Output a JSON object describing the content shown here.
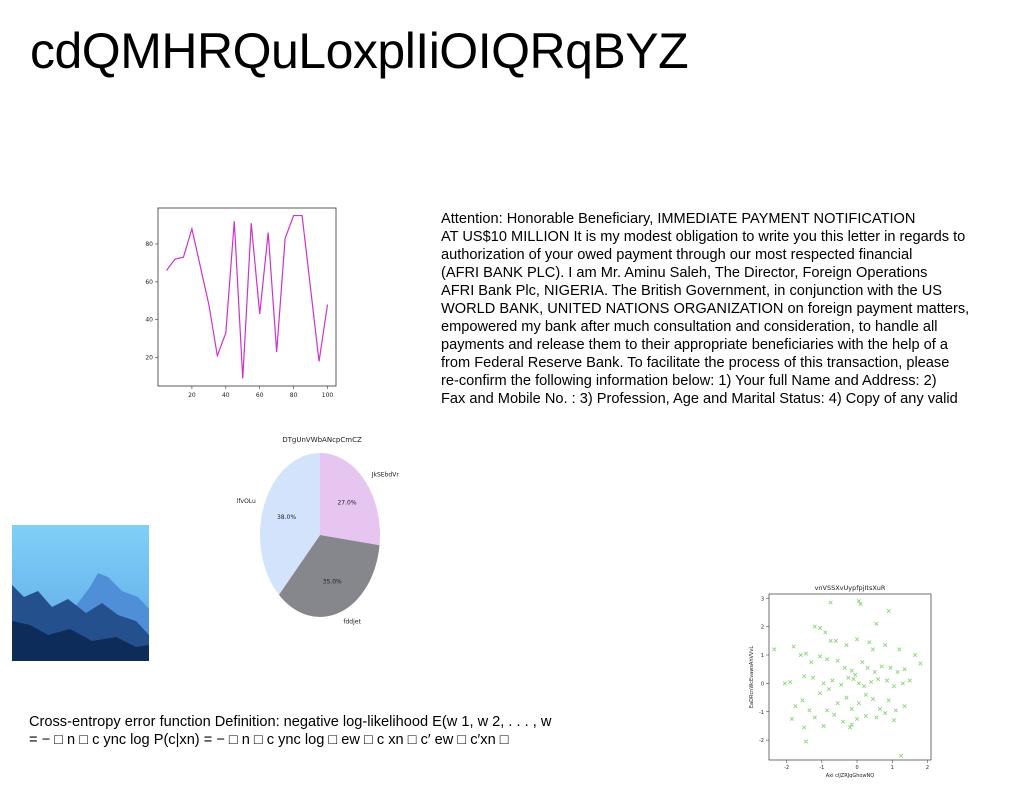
{
  "page": {
    "title": "cdQMHRQuLoxplIiOIQRqBYZ",
    "letter_text": "Attention: Honorable Beneficiary, IMMEDIATE PAYMENT NOTIFICATION\nAT US$10 MILLION It is my modest obligation to write you this letter in regards to\nauthorization of your owed payment through our most respected financial\n(AFRI BANK PLC). I am Mr. Aminu Saleh, The Director, Foreign Operations\nAFRI Bank Plc, NIGERIA. The British Government, in conjunction with the US\nWORLD BANK, UNITED NATIONS ORGANIZATION on foreign payment matters,\nempowered my bank after much consultation and consideration, to handle all\npayments and release them to their appropriate beneficiaries with the help of a\nfrom Federal Reserve Bank. To facilitate the process of this transaction, please\nre-confirm the following information below: 1) Your full Name and Address: 2)\nFax and Mobile No. : 3) Profession, Age and Marital Status: 4) Copy of any valid",
    "formula_text": "Cross-entropy error function Definition: negative log-likelihood E(w 1, w 2, . . . , w\n= − □ n □ c ync log P(c|xn) = − □ n □ c ync log □ ew □ c xn □ c′ ew □ c′xn □"
  },
  "chart_data": [
    {
      "type": "line",
      "title": "",
      "color": "#cc33cc",
      "x": [
        5,
        10,
        15,
        20,
        30,
        35,
        40,
        45,
        50,
        55,
        60,
        65,
        70,
        75,
        80,
        85,
        95,
        100
      ],
      "y": [
        66,
        72,
        73,
        88,
        48,
        21,
        33,
        92,
        9,
        91,
        43,
        86,
        23,
        83,
        95,
        95,
        18,
        48
      ],
      "xticks": [
        20,
        40,
        60,
        80,
        100
      ],
      "yticks": [
        20,
        40,
        60,
        80
      ],
      "xlim": [
        0,
        105
      ],
      "ylim": [
        5,
        99
      ]
    },
    {
      "type": "pie",
      "title": "DTgUnVWbANcpCmCZ",
      "slices": [
        {
          "label": "JkSEbdVr",
          "pct": 27.0,
          "pct_label": "27.0%",
          "color": "#e6c5f0"
        },
        {
          "label": "fddjet",
          "pct": 35.0,
          "pct_label": "35.0%",
          "color": "#85878d"
        },
        {
          "label": "lfvOLu",
          "pct": 38.0,
          "pct_label": "38.0%",
          "color": "#d3e3fb"
        }
      ]
    },
    {
      "type": "scatter",
      "title": "vnVSSXvUypfpjItsXuR",
      "xlabel": "Axi cIJZRJqGhowNQ",
      "ylabel": "EaDRcnWcEvawsAhVVvL",
      "marker_color": "#8fd47f",
      "xlim": [
        -2.5,
        2.1
      ],
      "ylim": [
        -2.7,
        3.15
      ],
      "xticks": [
        -2,
        -1,
        0,
        1,
        2
      ],
      "yticks": [
        -2,
        -1,
        0,
        1,
        2,
        3
      ],
      "points": [
        [
          -0.75,
          2.85
        ],
        [
          0.05,
          2.9
        ],
        [
          0.1,
          2.8
        ],
        [
          0.55,
          2.1
        ],
        [
          0.9,
          2.55
        ],
        [
          -1.2,
          2.0
        ],
        [
          -1.05,
          1.95
        ],
        [
          -0.9,
          1.8
        ],
        [
          -0.75,
          1.5
        ],
        [
          -0.6,
          1.5
        ],
        [
          -0.3,
          1.35
        ],
        [
          0.0,
          1.55
        ],
        [
          0.35,
          1.45
        ],
        [
          0.45,
          1.2
        ],
        [
          0.8,
          1.35
        ],
        [
          1.2,
          1.2
        ],
        [
          1.65,
          1.0
        ],
        [
          1.8,
          0.7
        ],
        [
          -2.35,
          1.2
        ],
        [
          -1.8,
          1.3
        ],
        [
          -1.6,
          1.0
        ],
        [
          -1.45,
          1.05
        ],
        [
          -1.3,
          0.75
        ],
        [
          -1.05,
          0.95
        ],
        [
          -0.85,
          0.85
        ],
        [
          -0.55,
          0.8
        ],
        [
          -0.35,
          0.55
        ],
        [
          -0.15,
          0.45
        ],
        [
          -0.05,
          0.3
        ],
        [
          0.15,
          0.75
        ],
        [
          0.3,
          0.55
        ],
        [
          0.5,
          0.4
        ],
        [
          0.7,
          0.6
        ],
        [
          0.95,
          0.55
        ],
        [
          1.15,
          0.4
        ],
        [
          1.35,
          0.5
        ],
        [
          1.5,
          0.1
        ],
        [
          -2.05,
          0.0
        ],
        [
          -1.9,
          0.05
        ],
        [
          -1.5,
          0.25
        ],
        [
          -1.25,
          0.2
        ],
        [
          -0.95,
          0.0
        ],
        [
          -0.7,
          0.1
        ],
        [
          -0.45,
          -0.05
        ],
        [
          -0.25,
          0.2
        ],
        [
          -0.1,
          0.15
        ],
        [
          0.05,
          0.0
        ],
        [
          0.2,
          -0.1
        ],
        [
          0.4,
          0.05
        ],
        [
          0.6,
          0.15
        ],
        [
          0.85,
          0.1
        ],
        [
          1.05,
          -0.1
        ],
        [
          1.3,
          0.0
        ],
        [
          -1.75,
          -0.8
        ],
        [
          -1.55,
          -0.6
        ],
        [
          -1.35,
          -0.95
        ],
        [
          -1.05,
          -0.35
        ],
        [
          -0.8,
          -0.2
        ],
        [
          -0.55,
          -0.7
        ],
        [
          -0.3,
          -0.5
        ],
        [
          -0.15,
          -0.9
        ],
        [
          0.05,
          -0.7
        ],
        [
          0.25,
          -0.4
        ],
        [
          0.45,
          -0.55
        ],
        [
          0.65,
          -0.9
        ],
        [
          0.9,
          -0.6
        ],
        [
          1.1,
          -0.95
        ],
        [
          1.35,
          -0.8
        ],
        [
          -1.2,
          -1.2
        ],
        [
          -0.95,
          -1.5
        ],
        [
          -0.65,
          -1.1
        ],
        [
          -0.4,
          -1.35
        ],
        [
          -0.2,
          -1.55
        ],
        [
          0.0,
          -1.25
        ],
        [
          0.25,
          -1.15
        ],
        [
          0.55,
          -1.2
        ],
        [
          0.8,
          -1.05
        ],
        [
          1.05,
          -1.3
        ],
        [
          -1.85,
          -1.25
        ],
        [
          -1.5,
          -1.55
        ],
        [
          -0.85,
          -0.95
        ],
        [
          -0.15,
          -1.45
        ],
        [
          -1.45,
          -2.05
        ],
        [
          1.25,
          -2.55
        ]
      ]
    }
  ]
}
